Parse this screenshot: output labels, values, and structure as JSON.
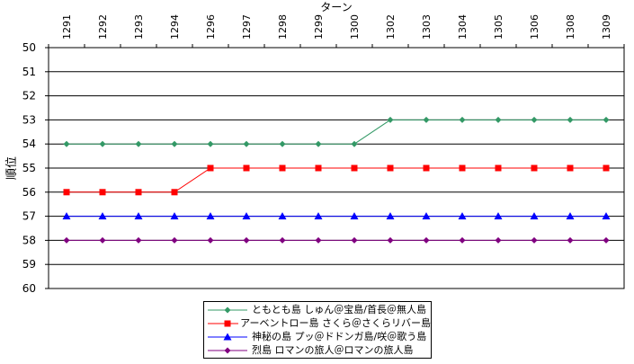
{
  "chart_data": {
    "type": "line",
    "title": "",
    "xlabel": "ターン",
    "ylabel": "順位",
    "categories": [
      "1291",
      "1292",
      "1293",
      "1294",
      "1296",
      "1297",
      "1298",
      "1299",
      "1300",
      "1302",
      "1303",
      "1304",
      "1305",
      "1306",
      "1308",
      "1309"
    ],
    "ylim": [
      50,
      60
    ],
    "y_reversed": true,
    "yticks": [
      "50",
      "51",
      "52",
      "53",
      "54",
      "55",
      "56",
      "57",
      "58",
      "59",
      "60"
    ],
    "grid": "horizontal",
    "legend_position": "bottom",
    "series": [
      {
        "name": "ともとも島 しゅん＠宝島/首長＠無人島",
        "color": "#339966",
        "marker": "diamond",
        "values": [
          54,
          54,
          54,
          54,
          54,
          54,
          54,
          54,
          54,
          53,
          53,
          53,
          53,
          53,
          53,
          53
        ]
      },
      {
        "name": "アーベントロー島 さくら＠さくらリバー島",
        "color": "#ff0000",
        "marker": "square",
        "values": [
          56,
          56,
          56,
          56,
          55,
          55,
          55,
          55,
          55,
          55,
          55,
          55,
          55,
          55,
          55,
          55
        ]
      },
      {
        "name": "神秘の島 プッ＠ドドンガ島/咲＠歌う島",
        "color": "#0000ff",
        "marker": "triangle",
        "values": [
          57,
          57,
          57,
          57,
          57,
          57,
          57,
          57,
          57,
          57,
          57,
          57,
          57,
          57,
          57,
          57
        ]
      },
      {
        "name": "烈島 ロマンの旅人＠ロマンの旅人島",
        "color": "#800080",
        "marker": "diamond",
        "values": [
          58,
          58,
          58,
          58,
          58,
          58,
          58,
          58,
          58,
          58,
          58,
          58,
          58,
          58,
          58,
          58
        ]
      }
    ]
  }
}
